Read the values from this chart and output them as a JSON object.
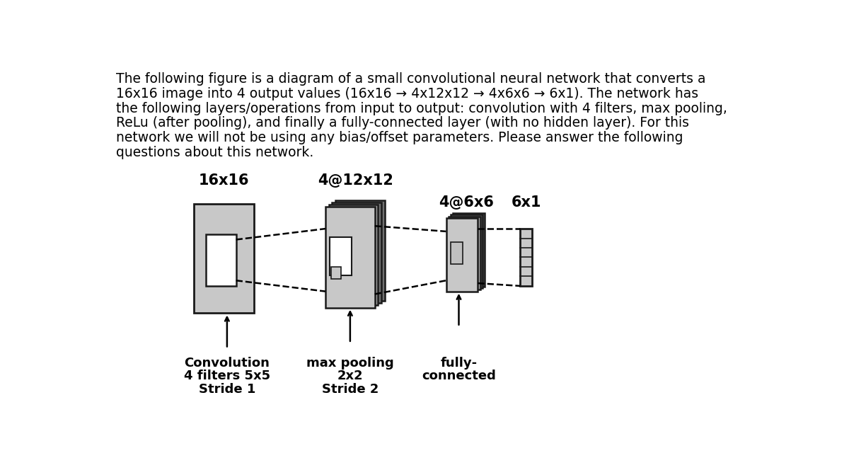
{
  "bg_color": "#ffffff",
  "text_color": "#000000",
  "light_gray": "#c8c8c8",
  "mid_gray": "#a0a0a0",
  "dark_gray": "#707070",
  "border_color": "#1a1a1a",
  "white": "#ffffff",
  "font_size_body": 13.5,
  "font_size_label": 15,
  "font_size_op": 13,
  "layer_labels": [
    "16x16",
    "4@12x12",
    "4@6x6",
    "6x1"
  ],
  "op_line1": [
    "Convolution",
    "max pooling",
    "fully-"
  ],
  "op_line2": [
    "4 filters 5x5",
    "2x2",
    "connected"
  ],
  "op_line3": [
    "Stride 1",
    "Stride 2",
    ""
  ]
}
